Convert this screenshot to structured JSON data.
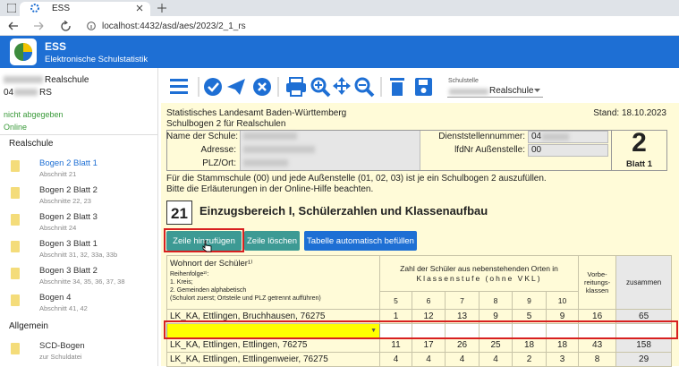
{
  "browser": {
    "tab_title": "ESS",
    "url": "localhost:4432/asd/aes/2023/2_1_rs"
  },
  "app": {
    "name": "ESS",
    "subtitle": "Elektronische Schulstatistik"
  },
  "sidebar": {
    "school_name": "Realschule",
    "school_number": "04",
    "school_type": "RS",
    "status": "nicht abgegeben",
    "connection": "Online",
    "sections": [
      {
        "title": "Realschule",
        "items": [
          {
            "label": "Bogen 2 Blatt 1",
            "sub": "Abschnitt 21"
          },
          {
            "label": "Bogen 2 Blatt 2",
            "sub": "Abschnitte 22, 23"
          },
          {
            "label": "Bogen 2 Blatt 3",
            "sub": "Abschnitt 24"
          },
          {
            "label": "Bogen 3 Blatt 1",
            "sub": "Abschnitt 31, 32, 33a, 33b"
          },
          {
            "label": "Bogen 3 Blatt 2",
            "sub": "Abschnitte 34, 35, 36, 37, 38"
          },
          {
            "label": "Bogen 4",
            "sub": "Abschnitt 41, 42"
          }
        ]
      },
      {
        "title": "Allgemein",
        "items": [
          {
            "label": "SCD-Bogen",
            "sub": "zur Schuldatei"
          }
        ]
      }
    ]
  },
  "toolbar": {
    "schulstelle_label": "Schulstelle",
    "schulstelle_value": "Realschule"
  },
  "header": {
    "office": "Statistisches Landesamt Baden-Württemberg",
    "date": "Stand: 18.10.2023",
    "form_title": "Schulbogen 2 für Realschulen"
  },
  "form": {
    "name_label": "Name der Schule:",
    "address_label": "Adresse:",
    "city_label": "PLZ/Ort:",
    "office_number_label": "Dienststellennummer:",
    "office_number": "04",
    "branch_label": "lfdNr Außenstelle:",
    "branch": "00",
    "sheet_number": "2",
    "sheet_label": "Blatt 1"
  },
  "note": [
    "Für die Stammschule (00) und jede Außenstelle (01, 02, 03) ist je ein Schulbogen 2 auszufüllen.",
    "Bitte die Erläuterungen in der Online-Hilfe beachten."
  ],
  "section": {
    "number": "21",
    "title": "Einzugsbereich I, Schülerzahlen und Klassenaufbau"
  },
  "buttons": [
    "Zeile hinzufügen",
    "Zeile löschen",
    "Tabelle automatisch befüllen"
  ],
  "table": {
    "residence_header": "Wohnort der Schüler¹⁾",
    "order_lines": [
      "Reihenfolge²⁾:",
      "1. Kreis;",
      "2. Gemeinden alphabetisch",
      "(Schulort zuerst; Ortsteile und PLZ getrennt aufführen)"
    ],
    "count_header": "Zahl der Schüler aus nebenstehenden Orten in",
    "grade_header": "Klassenstufe (ohne VKL)",
    "grades": [
      5,
      6,
      7,
      8,
      9,
      10
    ],
    "prep_header": "Vorbe-reitungs-klassen",
    "total_header": "zusammen",
    "rows": [
      [
        "LK_KA, Ettlingen, Bruchhausen, 76275",
        1,
        12,
        13,
        9,
        5,
        9,
        16,
        65
      ],
      [
        null,
        null,
        null,
        null,
        null,
        null,
        null,
        null,
        null
      ],
      [
        "LK_KA, Ettlingen, Ettlingen, 76275",
        11,
        17,
        26,
        25,
        18,
        18,
        43,
        158
      ],
      [
        "LK_KA, Ettlingen, Ettlingenweier, 76275",
        4,
        4,
        4,
        4,
        2,
        3,
        8,
        29
      ]
    ]
  }
}
